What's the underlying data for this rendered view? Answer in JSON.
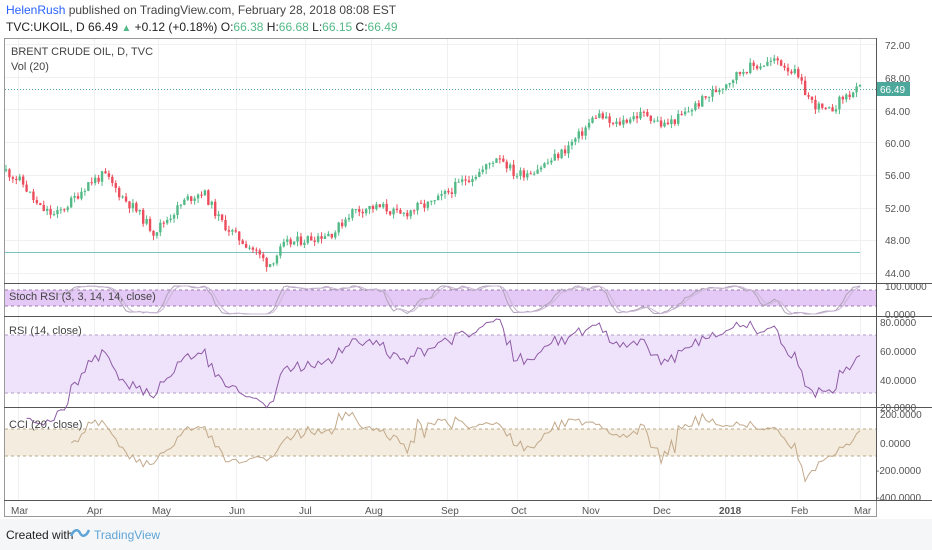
{
  "header": {
    "author": "HelenRush",
    "published_text": " published on TradingView.com, February 28, 2018 08:08 EST",
    "symbol_line": "TVC:UKOIL, D",
    "last": "66.49",
    "change": "+0.12 (+0.18%)",
    "o_label": "O:",
    "o_val": "66.38",
    "h_label": "H:",
    "h_val": "66.68",
    "l_label": "L:",
    "l_val": "66.15",
    "c_label": "C:",
    "c_val": "66.49"
  },
  "main_pane": {
    "title": "BRENT CRUDE OIL, D, TVC",
    "vol_label": "Vol (20)",
    "y_ticks": [
      "72.00",
      "68.00",
      "64.00",
      "60.00",
      "56.00",
      "52.00",
      "48.00",
      "44.00"
    ],
    "last_price_tag": "66.49"
  },
  "stoch_pane": {
    "title": "Stoch RSI (3, 3, 14, 14, close)",
    "y_ticks": [
      "100.0000",
      "0.0000"
    ]
  },
  "rsi_pane": {
    "title": "RSI (14, close)",
    "y_ticks": [
      "80.0000",
      "60.0000",
      "40.0000",
      "20.0000"
    ]
  },
  "cci_pane": {
    "title": "CCI (20, close)",
    "y_ticks": [
      "200.0000",
      "0.0000",
      "-200.0000",
      "-400.0000"
    ]
  },
  "x_axis": {
    "labels": [
      "Mar",
      "Apr",
      "May",
      "Jun",
      "Jul",
      "Aug",
      "Sep",
      "Oct",
      "Nov",
      "Dec",
      "2018",
      "Feb",
      "Mar"
    ]
  },
  "footer": {
    "created_with": "Created with",
    "brand": "TradingView"
  },
  "colors": {
    "up": "#53b987",
    "down": "#eb4d5c",
    "stoch_fill": "#e4c8f5",
    "rsi_fill": "#efe3fb",
    "cci_fill": "#f3ecdf",
    "price_line": "#4ca89a",
    "accent": "#2962ff"
  },
  "chart_data": {
    "type": "candlestick",
    "title": "BRENT CRUDE OIL, D, TVC",
    "ylim": [
      43.5,
      72.5
    ],
    "closes": [
      {
        "x": "2017-03-01",
        "y": 56.5
      },
      {
        "x": "2017-03-08",
        "y": 55.0
      },
      {
        "x": "2017-03-15",
        "y": 52.0
      },
      {
        "x": "2017-03-22",
        "y": 51.0
      },
      {
        "x": "2017-03-29",
        "y": 52.8
      },
      {
        "x": "2017-04-05",
        "y": 55.0
      },
      {
        "x": "2017-04-12",
        "y": 56.0
      },
      {
        "x": "2017-04-19",
        "y": 53.5
      },
      {
        "x": "2017-04-26",
        "y": 51.5
      },
      {
        "x": "2017-05-03",
        "y": 49.0
      },
      {
        "x": "2017-05-10",
        "y": 51.0
      },
      {
        "x": "2017-05-17",
        "y": 53.0
      },
      {
        "x": "2017-05-24",
        "y": 54.0
      },
      {
        "x": "2017-05-31",
        "y": 50.5
      },
      {
        "x": "2017-06-07",
        "y": 48.5
      },
      {
        "x": "2017-06-14",
        "y": 47.0
      },
      {
        "x": "2017-06-21",
        "y": 45.0
      },
      {
        "x": "2017-06-28",
        "y": 47.5
      },
      {
        "x": "2017-07-05",
        "y": 48.0
      },
      {
        "x": "2017-07-12",
        "y": 48.5
      },
      {
        "x": "2017-07-19",
        "y": 49.0
      },
      {
        "x": "2017-07-26",
        "y": 51.5
      },
      {
        "x": "2017-08-02",
        "y": 52.0
      },
      {
        "x": "2017-08-09",
        "y": 52.0
      },
      {
        "x": "2017-08-16",
        "y": 51.0
      },
      {
        "x": "2017-08-23",
        "y": 52.0
      },
      {
        "x": "2017-08-30",
        "y": 52.5
      },
      {
        "x": "2017-09-06",
        "y": 54.0
      },
      {
        "x": "2017-09-13",
        "y": 55.5
      },
      {
        "x": "2017-09-20",
        "y": 56.5
      },
      {
        "x": "2017-09-27",
        "y": 58.5
      },
      {
        "x": "2017-10-04",
        "y": 56.0
      },
      {
        "x": "2017-10-11",
        "y": 56.5
      },
      {
        "x": "2017-10-18",
        "y": 57.5
      },
      {
        "x": "2017-10-25",
        "y": 59.0
      },
      {
        "x": "2017-11-01",
        "y": 61.0
      },
      {
        "x": "2017-11-08",
        "y": 63.5
      },
      {
        "x": "2017-11-15",
        "y": 62.0
      },
      {
        "x": "2017-11-22",
        "y": 63.0
      },
      {
        "x": "2017-11-29",
        "y": 63.5
      },
      {
        "x": "2017-12-06",
        "y": 62.0
      },
      {
        "x": "2017-12-13",
        "y": 63.0
      },
      {
        "x": "2017-12-20",
        "y": 64.5
      },
      {
        "x": "2017-12-27",
        "y": 66.0
      },
      {
        "x": "2018-01-03",
        "y": 67.5
      },
      {
        "x": "2018-01-10",
        "y": 69.0
      },
      {
        "x": "2018-01-17",
        "y": 69.5
      },
      {
        "x": "2018-01-24",
        "y": 70.0
      },
      {
        "x": "2018-01-31",
        "y": 68.5
      },
      {
        "x": "2018-02-07",
        "y": 65.0
      },
      {
        "x": "2018-02-14",
        "y": 63.5
      },
      {
        "x": "2018-02-21",
        "y": 65.5
      },
      {
        "x": "2018-02-28",
        "y": 66.49
      }
    ]
  }
}
